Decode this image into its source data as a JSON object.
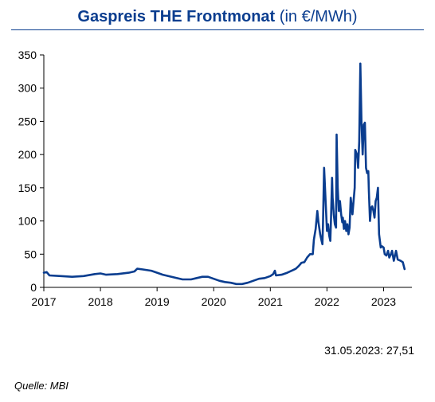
{
  "chart_data": {
    "type": "line",
    "title": "Gaspreis THE Frontmonat",
    "subtitle": "(in €/MWh)",
    "xlabel": "",
    "ylabel": "",
    "xlim": [
      2017,
      2023.5
    ],
    "ylim": [
      0,
      350
    ],
    "yticks": [
      0,
      50,
      100,
      150,
      200,
      250,
      300,
      350
    ],
    "xticks": [
      "2017",
      "2018",
      "2019",
      "2020",
      "2021",
      "2022",
      "2023"
    ],
    "grid": false,
    "series": [
      {
        "color": "#0a3d8f",
        "points": [
          [
            2017.0,
            22
          ],
          [
            2017.05,
            23
          ],
          [
            2017.1,
            18
          ],
          [
            2017.3,
            17
          ],
          [
            2017.5,
            16
          ],
          [
            2017.7,
            17
          ],
          [
            2017.9,
            20
          ],
          [
            2018.0,
            21
          ],
          [
            2018.1,
            19
          ],
          [
            2018.3,
            20
          ],
          [
            2018.5,
            22
          ],
          [
            2018.6,
            24
          ],
          [
            2018.65,
            28
          ],
          [
            2018.75,
            27
          ],
          [
            2018.9,
            25
          ],
          [
            2019.0,
            22
          ],
          [
            2019.1,
            19
          ],
          [
            2019.3,
            15
          ],
          [
            2019.45,
            12
          ],
          [
            2019.6,
            12
          ],
          [
            2019.7,
            14
          ],
          [
            2019.8,
            16
          ],
          [
            2019.9,
            16
          ],
          [
            2020.0,
            13
          ],
          [
            2020.1,
            10
          ],
          [
            2020.2,
            8
          ],
          [
            2020.3,
            7
          ],
          [
            2020.4,
            5
          ],
          [
            2020.5,
            5
          ],
          [
            2020.6,
            7
          ],
          [
            2020.7,
            10
          ],
          [
            2020.8,
            13
          ],
          [
            2020.9,
            14
          ],
          [
            2021.0,
            17
          ],
          [
            2021.05,
            20
          ],
          [
            2021.08,
            25
          ],
          [
            2021.1,
            18
          ],
          [
            2021.2,
            19
          ],
          [
            2021.3,
            22
          ],
          [
            2021.4,
            26
          ],
          [
            2021.45,
            28
          ],
          [
            2021.5,
            32
          ],
          [
            2021.55,
            37
          ],
          [
            2021.6,
            38
          ],
          [
            2021.65,
            45
          ],
          [
            2021.7,
            50
          ],
          [
            2021.75,
            50
          ],
          [
            2021.77,
            72
          ],
          [
            2021.8,
            88
          ],
          [
            2021.83,
            115
          ],
          [
            2021.85,
            98
          ],
          [
            2021.88,
            80
          ],
          [
            2021.9,
            72
          ],
          [
            2021.92,
            65
          ],
          [
            2021.93,
            95
          ],
          [
            2021.95,
            180
          ],
          [
            2021.97,
            140
          ],
          [
            2022.0,
            85
          ],
          [
            2022.02,
            95
          ],
          [
            2022.04,
            78
          ],
          [
            2022.06,
            70
          ],
          [
            2022.07,
            100
          ],
          [
            2022.09,
            165
          ],
          [
            2022.1,
            135
          ],
          [
            2022.12,
            110
          ],
          [
            2022.14,
            95
          ],
          [
            2022.16,
            90
          ],
          [
            2022.17,
            230
          ],
          [
            2022.19,
            150
          ],
          [
            2022.21,
            115
          ],
          [
            2022.23,
            130
          ],
          [
            2022.25,
            110
          ],
          [
            2022.27,
            98
          ],
          [
            2022.28,
            105
          ],
          [
            2022.3,
            88
          ],
          [
            2022.32,
            100
          ],
          [
            2022.34,
            85
          ],
          [
            2022.36,
            95
          ],
          [
            2022.38,
            80
          ],
          [
            2022.4,
            90
          ],
          [
            2022.42,
            135
          ],
          [
            2022.45,
            110
          ],
          [
            2022.47,
            130
          ],
          [
            2022.49,
            150
          ],
          [
            2022.5,
            207
          ],
          [
            2022.53,
            200
          ],
          [
            2022.55,
            180
          ],
          [
            2022.57,
            220
          ],
          [
            2022.59,
            337
          ],
          [
            2022.61,
            250
          ],
          [
            2022.63,
            200
          ],
          [
            2022.65,
            245
          ],
          [
            2022.67,
            248
          ],
          [
            2022.69,
            180
          ],
          [
            2022.71,
            172
          ],
          [
            2022.73,
            175
          ],
          [
            2022.74,
            145
          ],
          [
            2022.76,
            100
          ],
          [
            2022.78,
            120
          ],
          [
            2022.8,
            122
          ],
          [
            2022.82,
            115
          ],
          [
            2022.84,
            105
          ],
          [
            2022.86,
            130
          ],
          [
            2022.88,
            135
          ],
          [
            2022.9,
            150
          ],
          [
            2022.92,
            80
          ],
          [
            2022.95,
            60
          ],
          [
            2022.97,
            62
          ],
          [
            2023.0,
            60
          ],
          [
            2023.02,
            50
          ],
          [
            2023.05,
            48
          ],
          [
            2023.08,
            55
          ],
          [
            2023.1,
            45
          ],
          [
            2023.13,
            50
          ],
          [
            2023.15,
            55
          ],
          [
            2023.18,
            40
          ],
          [
            2023.22,
            55
          ],
          [
            2023.25,
            42
          ],
          [
            2023.3,
            40
          ],
          [
            2023.34,
            38
          ],
          [
            2023.37,
            27.51
          ]
        ]
      }
    ],
    "annotation": "31.05.2023: 27,51"
  },
  "footer": {
    "source": "Quelle: MBI"
  }
}
